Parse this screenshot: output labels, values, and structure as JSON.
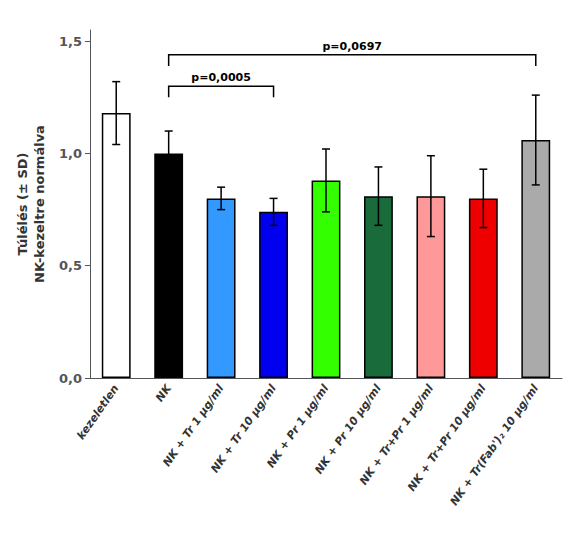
{
  "chart_data": {
    "type": "bar",
    "categories": [
      "kezeletlen",
      "NK",
      "NK + Tr 1 μg/ml",
      "NK + Tr 10 μg/ml",
      "NK + Pr 1 μg/ml",
      "NK + Pr 10 μg/ml",
      "NK + Tr+Pr 1 μg/ml",
      "NK + Tr+Pr 10 μg/ml",
      "NK + Tr(Fab')₂ 10 μg/ml"
    ],
    "values": [
      1.18,
      1.0,
      0.8,
      0.74,
      0.88,
      0.81,
      0.81,
      0.8,
      1.06
    ],
    "errors": [
      0.14,
      0.1,
      0.05,
      0.06,
      0.14,
      0.13,
      0.18,
      0.13,
      0.2
    ],
    "colors": [
      "white",
      "black",
      "#3399FF",
      "#0000EE",
      "#33FF00",
      "#1A6B3C",
      "#FF9999",
      "#EE0000",
      "#AAAAAA"
    ],
    "ylabel": "Túlélés (± SD)\nNK-kezeltre normálva",
    "ylim": [
      0,
      1.55
    ],
    "yticks": [
      {
        "value": 0.0,
        "label": "0,0"
      },
      {
        "value": 0.5,
        "label": "0,5"
      },
      {
        "value": 1.0,
        "label": "1,0"
      },
      {
        "value": 1.5,
        "label": "1,5"
      }
    ],
    "annotations": [
      {
        "text": "p=0,0005",
        "x1": "NK",
        "x2": "NK + Tr 10 μg/ml",
        "y": 1.3
      },
      {
        "text": "p=0,0697",
        "x1": "NK",
        "x2": "NK + Tr(Fab')₂ 10 μg/ml",
        "y": 1.44
      }
    ],
    "grid": false
  }
}
